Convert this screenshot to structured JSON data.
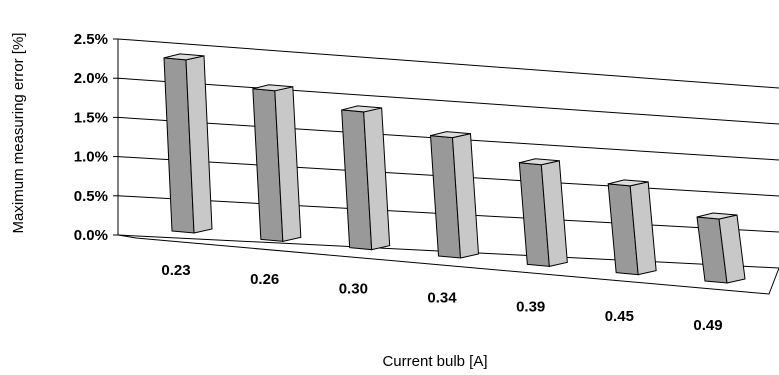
{
  "chart_data": {
    "type": "bar",
    "style": "3d-perspective",
    "categories": [
      "0.23",
      "0.26",
      "0.30",
      "0.34",
      "0.39",
      "0.45",
      "0.49"
    ],
    "values": [
      2.3,
      2.0,
      1.83,
      1.6,
      1.35,
      1.18,
      0.85
    ],
    "ylim": [
      0,
      2.5
    ],
    "yticks": [
      "0.0%",
      "0.5%",
      "1.0%",
      "1.5%",
      "2.0%",
      "2.5%"
    ],
    "xlabel": "Current bulb [A]",
    "ylabel": "Maximum measuring error [%]",
    "grid": true,
    "legend": "none",
    "colors": {
      "bar_front": "#999999",
      "bar_side": "#c8c8c8",
      "bar_top": "#dddddd",
      "stroke": "#000000"
    }
  }
}
